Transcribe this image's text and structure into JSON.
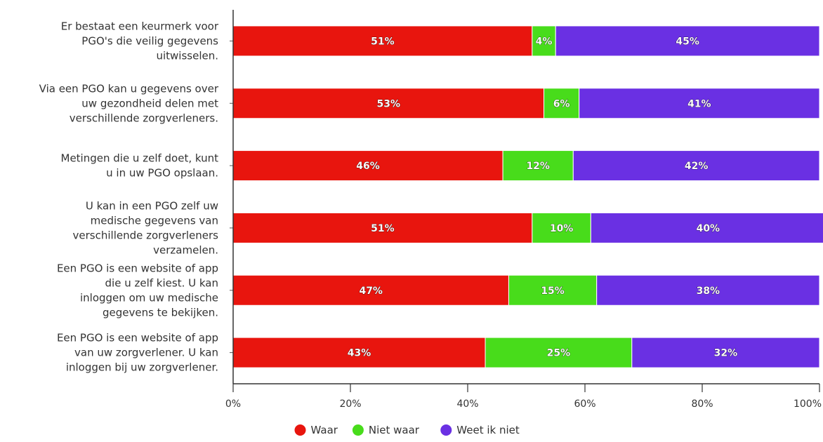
{
  "chart_data": {
    "type": "bar",
    "orientation": "horizontal",
    "stacked": "percent",
    "categories": [
      [
        "Er bestaat een keurmerk voor",
        "PGO's die veilig gegevens",
        "uitwisselen."
      ],
      [
        "Via een PGO kan u gegevens over",
        "uw gezondheid delen met",
        "verschillende zorgverleners."
      ],
      [
        "Metingen die u zelf doet, kunt",
        "u in uw PGO opslaan."
      ],
      [
        "U kan in een PGO zelf uw",
        "medische gegevens van",
        "verschillende zorgverleners",
        "verzamelen."
      ],
      [
        "Een PGO is een website of app",
        "die u zelf kiest. U kan",
        "inloggen om uw medische",
        "gegevens te bekijken."
      ],
      [
        "Een PGO is een website of app",
        "van uw zorgverlener. U kan",
        "inloggen bij uw zorgverlener."
      ]
    ],
    "series": [
      {
        "name": "Waar",
        "color": "#e8150e",
        "values": [
          51,
          53,
          46,
          51,
          47,
          43
        ]
      },
      {
        "name": "Niet waar",
        "color": "#48dc1b",
        "values": [
          4,
          6,
          12,
          10,
          15,
          25
        ]
      },
      {
        "name": "Weet ik niet",
        "color": "#6a30e3",
        "values": [
          45,
          41,
          42,
          40,
          38,
          32
        ]
      }
    ],
    "xlim": [
      0,
      100
    ],
    "x_ticks": [
      "0%",
      "20%",
      "40%",
      "60%",
      "80%",
      "100%"
    ],
    "value_suffix": "%",
    "grid": false,
    "legend_position": "bottom"
  }
}
